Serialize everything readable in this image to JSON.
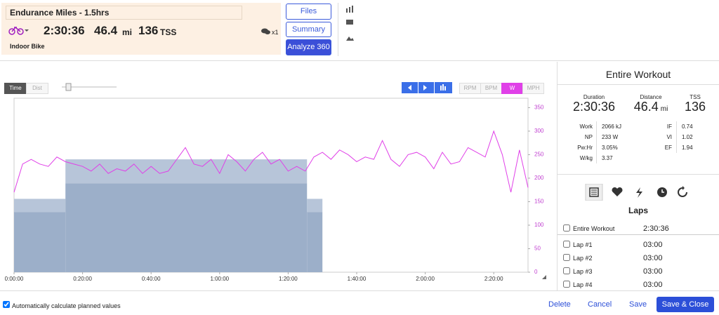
{
  "header": {
    "title": "Endurance Miles - 1.5hrs",
    "duration": "2:30:36",
    "distance": "46.4",
    "distance_unit": "mi",
    "tss": "136",
    "tss_unit": "TSS",
    "comments": "x1",
    "sport": "Indoor Bike"
  },
  "buttons": {
    "files": "Files",
    "summary": "Summary",
    "analyze": "Analyze 360"
  },
  "chart_controls": {
    "time": "Time",
    "dist": "Dist",
    "units": [
      "RPM",
      "BPM",
      "W",
      "MPH"
    ]
  },
  "chart_data": {
    "type": "line",
    "color": "#e040e8",
    "x": [
      0,
      2.5,
      5,
      7.5,
      10,
      12.5,
      15,
      17.5,
      20,
      22.5,
      25,
      27.5,
      30,
      32.5,
      35,
      37.5,
      40,
      42.5,
      45,
      47.5,
      50,
      52.5,
      55,
      57.5,
      60,
      62.5,
      65,
      67.5,
      70,
      72.5,
      75,
      77.5,
      80,
      82.5,
      85,
      87.5,
      90,
      92.5,
      95,
      97.5,
      100,
      102.5,
      105,
      107.5,
      110,
      112.5,
      115,
      117.5,
      120,
      122.5,
      125,
      127.5,
      130,
      132.5,
      135,
      137.5,
      140,
      142.5,
      145,
      147.5,
      150
    ],
    "values": [
      170,
      230,
      240,
      230,
      225,
      245,
      235,
      230,
      225,
      215,
      230,
      210,
      220,
      215,
      230,
      210,
      225,
      210,
      215,
      240,
      265,
      230,
      225,
      240,
      210,
      250,
      235,
      215,
      240,
      255,
      230,
      240,
      215,
      225,
      215,
      245,
      255,
      240,
      260,
      250,
      235,
      245,
      240,
      280,
      240,
      225,
      250,
      255,
      245,
      220,
      255,
      230,
      235,
      265,
      255,
      245,
      300,
      250,
      170,
      260,
      180
    ],
    "planned": [
      {
        "start": 0,
        "end": 15,
        "low": 128,
        "high": 156
      },
      {
        "start": 15,
        "end": 85.5,
        "low": 189,
        "high": 240
      },
      {
        "start": 85.5,
        "end": 90,
        "low": 128,
        "high": 156
      }
    ],
    "planned_colors": [
      "#b7c5d9",
      "#9cafc9"
    ],
    "xlim": [
      0,
      150
    ],
    "xticks": [
      {
        "value": 0,
        "label": "0:00:00"
      },
      {
        "value": 20,
        "label": "0:20:00"
      },
      {
        "value": 40,
        "label": "0:40:00"
      },
      {
        "value": 60,
        "label": "1:00:00"
      },
      {
        "value": 80,
        "label": "1:20:00"
      },
      {
        "value": 100,
        "label": "1:40:00"
      },
      {
        "value": 120,
        "label": "2:00:00"
      },
      {
        "value": 140,
        "label": "2:20:00"
      }
    ],
    "ylim": [
      0,
      370
    ],
    "yticks": [
      0,
      50,
      100,
      150,
      200,
      250,
      300,
      350
    ]
  },
  "summary": {
    "title": "Entire Workout",
    "metrics": [
      {
        "label": "Duration",
        "value": "2:30:36"
      },
      {
        "label": "Distance",
        "value": "46.4",
        "unit": "mi"
      },
      {
        "label": "TSS",
        "value": "136"
      }
    ],
    "stats_left": [
      [
        "Work",
        "2066 kJ"
      ],
      [
        "NP",
        "233 W"
      ],
      [
        "Pw:Hr",
        "3.05%"
      ],
      [
        "W/kg",
        "3.37"
      ]
    ],
    "stats_right": [
      [
        "IF",
        "0.74"
      ],
      [
        "VI",
        "1.02"
      ],
      [
        "EF",
        "1.94"
      ]
    ]
  },
  "laps": {
    "title": "Laps",
    "rows": [
      [
        "Entire Workout",
        "2:30:36"
      ],
      [
        "Lap #1",
        "03:00"
      ],
      [
        "Lap #2",
        "03:00"
      ],
      [
        "Lap #3",
        "03:00"
      ],
      [
        "Lap #4",
        "03:00"
      ]
    ]
  },
  "footer": {
    "auto_calc": "Automatically calculate planned values",
    "delete": "Delete",
    "cancel": "Cancel",
    "save": "Save",
    "save_close": "Save & Close"
  }
}
